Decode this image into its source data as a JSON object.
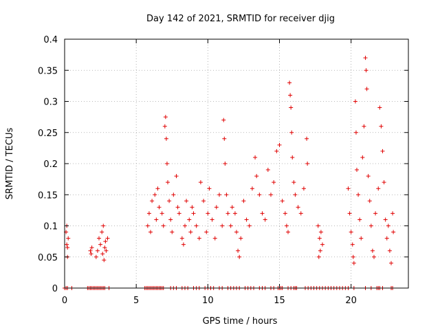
{
  "chart_data": {
    "type": "scatter",
    "title": "Day 142 of 2021, SRMTID for receiver djig",
    "xlabel": "GPS time / hours",
    "ylabel": "SRMTID / TECUs",
    "xlim": [
      0,
      24
    ],
    "ylim": [
      0,
      0.4
    ],
    "x_ticks": [
      0,
      5,
      10,
      15,
      20
    ],
    "y_ticks": [
      0,
      0.05,
      0.1,
      0.15,
      0.2,
      0.25,
      0.3,
      0.35,
      0.4
    ],
    "x_tick_labels": [
      "0",
      "5",
      "10",
      "15",
      "20"
    ],
    "y_tick_labels": [
      "0",
      "0.05",
      "0.1",
      "0.15",
      "0.2",
      "0.25",
      "0.3",
      "0.35",
      "0.4"
    ],
    "grid": true,
    "marker": "+",
    "marker_color": "#e00000",
    "series": [
      {
        "points": [
          [
            0.1,
            0.09
          ],
          [
            0.15,
            0.07
          ],
          [
            0.2,
            0.05
          ],
          [
            0.2,
            0.065
          ],
          [
            0.25,
            0.08
          ],
          [
            0.15,
            0.1
          ],
          [
            1.8,
            0.06
          ],
          [
            1.9,
            0.065
          ],
          [
            1.85,
            0.055
          ],
          [
            2.2,
            0.05
          ],
          [
            2.3,
            0.06
          ],
          [
            2.4,
            0.08
          ],
          [
            2.5,
            0.07
          ],
          [
            2.6,
            0.09
          ],
          [
            2.7,
            0.1
          ],
          [
            2.8,
            0.065
          ],
          [
            2.85,
            0.075
          ],
          [
            2.9,
            0.06
          ],
          [
            3.0,
            0.08
          ],
          [
            2.75,
            0.045
          ],
          [
            2.65,
            0.055
          ],
          [
            5.8,
            0.1
          ],
          [
            5.9,
            0.12
          ],
          [
            6.0,
            0.09
          ],
          [
            6.1,
            0.14
          ],
          [
            6.3,
            0.15
          ],
          [
            6.4,
            0.11
          ],
          [
            6.5,
            0.16
          ],
          [
            6.6,
            0.13
          ],
          [
            6.8,
            0.12
          ],
          [
            6.9,
            0.1
          ],
          [
            7.0,
            0.26
          ],
          [
            7.05,
            0.275
          ],
          [
            7.1,
            0.24
          ],
          [
            7.15,
            0.2
          ],
          [
            7.2,
            0.17
          ],
          [
            7.3,
            0.14
          ],
          [
            7.4,
            0.11
          ],
          [
            7.5,
            0.09
          ],
          [
            7.6,
            0.15
          ],
          [
            7.8,
            0.18
          ],
          [
            7.9,
            0.13
          ],
          [
            8.0,
            0.12
          ],
          [
            8.2,
            0.08
          ],
          [
            8.3,
            0.07
          ],
          [
            8.4,
            0.1
          ],
          [
            8.5,
            0.14
          ],
          [
            8.7,
            0.11
          ],
          [
            8.8,
            0.09
          ],
          [
            8.9,
            0.13
          ],
          [
            9.0,
            0.12
          ],
          [
            9.2,
            0.1
          ],
          [
            9.4,
            0.08
          ],
          [
            9.5,
            0.17
          ],
          [
            9.7,
            0.14
          ],
          [
            9.9,
            0.09
          ],
          [
            10.0,
            0.12
          ],
          [
            10.1,
            0.16
          ],
          [
            10.3,
            0.11
          ],
          [
            10.5,
            0.08
          ],
          [
            10.6,
            0.13
          ],
          [
            10.8,
            0.15
          ],
          [
            11.0,
            0.1
          ],
          [
            11.1,
            0.27
          ],
          [
            11.15,
            0.24
          ],
          [
            11.2,
            0.2
          ],
          [
            11.3,
            0.15
          ],
          [
            11.4,
            0.12
          ],
          [
            11.6,
            0.1
          ],
          [
            11.7,
            0.13
          ],
          [
            11.9,
            0.12
          ],
          [
            12.0,
            0.09
          ],
          [
            12.1,
            0.06
          ],
          [
            12.2,
            0.05
          ],
          [
            12.3,
            0.08
          ],
          [
            12.5,
            0.14
          ],
          [
            12.7,
            0.11
          ],
          [
            12.9,
            0.1
          ],
          [
            13.1,
            0.16
          ],
          [
            13.3,
            0.21
          ],
          [
            13.4,
            0.18
          ],
          [
            13.6,
            0.15
          ],
          [
            13.8,
            0.12
          ],
          [
            14.0,
            0.11
          ],
          [
            14.2,
            0.19
          ],
          [
            14.4,
            0.15
          ],
          [
            14.6,
            0.17
          ],
          [
            14.8,
            0.22
          ],
          [
            15.0,
            0.23
          ],
          [
            15.2,
            0.14
          ],
          [
            15.4,
            0.12
          ],
          [
            15.5,
            0.1
          ],
          [
            15.6,
            0.09
          ],
          [
            15.7,
            0.33
          ],
          [
            15.75,
            0.31
          ],
          [
            15.8,
            0.29
          ],
          [
            15.85,
            0.25
          ],
          [
            15.9,
            0.21
          ],
          [
            16.0,
            0.17
          ],
          [
            16.1,
            0.15
          ],
          [
            16.3,
            0.13
          ],
          [
            16.5,
            0.12
          ],
          [
            16.7,
            0.16
          ],
          [
            16.9,
            0.24
          ],
          [
            16.95,
            0.2
          ],
          [
            17.7,
            0.1
          ],
          [
            17.8,
            0.08
          ],
          [
            17.85,
            0.06
          ],
          [
            17.9,
            0.09
          ],
          [
            18.0,
            0.07
          ],
          [
            17.75,
            0.05
          ],
          [
            19.8,
            0.16
          ],
          [
            19.9,
            0.12
          ],
          [
            20.0,
            0.09
          ],
          [
            20.1,
            0.07
          ],
          [
            20.15,
            0.05
          ],
          [
            20.2,
            0.04
          ],
          [
            20.3,
            0.3
          ],
          [
            20.35,
            0.25
          ],
          [
            20.4,
            0.19
          ],
          [
            20.5,
            0.15
          ],
          [
            20.6,
            0.11
          ],
          [
            20.7,
            0.08
          ],
          [
            20.8,
            0.21
          ],
          [
            20.9,
            0.26
          ],
          [
            21.0,
            0.37
          ],
          [
            21.05,
            0.35
          ],
          [
            21.1,
            0.32
          ],
          [
            21.2,
            0.18
          ],
          [
            21.3,
            0.14
          ],
          [
            21.4,
            0.1
          ],
          [
            21.5,
            0.06
          ],
          [
            21.6,
            0.05
          ],
          [
            21.7,
            0.12
          ],
          [
            21.9,
            0.16
          ],
          [
            22.0,
            0.29
          ],
          [
            22.1,
            0.26
          ],
          [
            22.2,
            0.22
          ],
          [
            22.3,
            0.17
          ],
          [
            22.4,
            0.11
          ],
          [
            22.5,
            0.08
          ],
          [
            22.6,
            0.1
          ],
          [
            22.7,
            0.06
          ],
          [
            22.8,
            0.04
          ],
          [
            22.9,
            0.12
          ],
          [
            22.95,
            0.09
          ]
        ]
      }
    ],
    "zero_points_x": [
      0.0,
      0.1,
      0.2,
      0.5,
      1.6,
      1.7,
      1.8,
      1.9,
      2.0,
      2.1,
      2.2,
      2.3,
      2.4,
      2.5,
      2.6,
      2.7,
      2.8,
      3.1,
      5.6,
      5.7,
      5.8,
      5.9,
      6.0,
      6.1,
      6.2,
      6.3,
      6.4,
      6.5,
      6.6,
      6.7,
      6.8,
      6.9,
      7.4,
      7.6,
      7.8,
      8.2,
      8.4,
      8.6,
      9.0,
      9.2,
      9.4,
      9.8,
      10.0,
      10.2,
      10.4,
      10.8,
      11.0,
      11.4,
      11.6,
      11.8,
      12.0,
      12.2,
      12.6,
      12.8,
      13.0,
      13.2,
      13.6,
      13.8,
      14.0,
      14.4,
      14.6,
      14.9,
      15.0,
      15.1,
      15.2,
      15.6,
      15.8,
      16.0,
      16.1,
      16.2,
      16.8,
      17.0,
      17.2,
      17.4,
      17.6,
      17.8,
      18.0,
      18.2,
      18.4,
      18.6,
      18.8,
      19.0,
      19.2,
      19.4,
      19.6,
      19.8,
      20.2,
      21.0,
      21.4,
      21.8,
      21.9,
      22.0,
      22.2,
      22.8,
      22.9
    ]
  }
}
